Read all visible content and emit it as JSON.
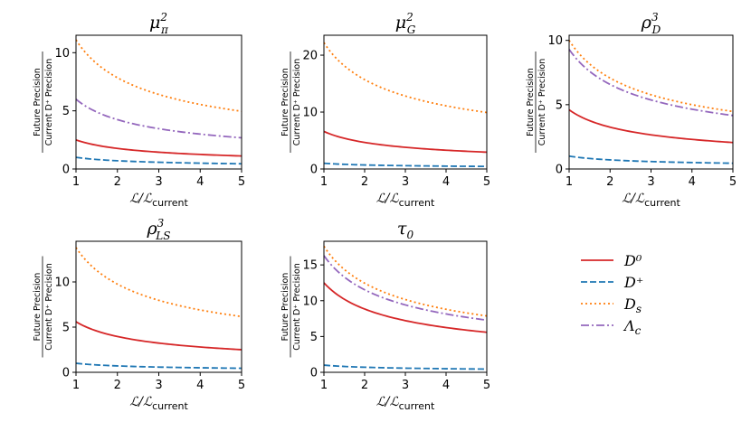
{
  "chart_data": [
    {
      "type": "line",
      "title": "μπ²",
      "xlabel": "ℒ/ℒcurrent",
      "ylabel_numerator": "Future Precision",
      "ylabel_denominator": "Current D⁺ Precision",
      "xlim": [
        1,
        5
      ],
      "ylim": [
        0,
        11.5
      ],
      "xticks": [
        "1",
        "2",
        "3",
        "4",
        "5"
      ],
      "yticks": [
        0,
        5,
        10
      ],
      "series": [
        {
          "name": "D0",
          "values_at_x1": 2.5
        },
        {
          "name": "D+",
          "values_at_x1": 1.0
        },
        {
          "name": "Ds",
          "values_at_x1": 11.1
        },
        {
          "name": "Λc",
          "values_at_x1": 6.0
        }
      ]
    },
    {
      "type": "line",
      "title": "μG²",
      "xlabel": "ℒ/ℒcurrent",
      "ylabel_numerator": "Future Precision",
      "ylabel_denominator": "Current D⁺ Precision",
      "xlim": [
        1,
        5
      ],
      "ylim": [
        0,
        23.5
      ],
      "xticks": [
        "1",
        "2",
        "3",
        "4",
        "5"
      ],
      "yticks": [
        0,
        10,
        20
      ],
      "series": [
        {
          "name": "D0",
          "values_at_x1": 6.6
        },
        {
          "name": "D+",
          "values_at_x1": 1.0
        },
        {
          "name": "Ds",
          "values_at_x1": 22.2
        }
      ]
    },
    {
      "type": "line",
      "title": "ρD³",
      "xlabel": "ℒ/ℒcurrent",
      "ylabel_numerator": "Future Precision",
      "ylabel_denominator": "Current D⁺ Precision",
      "xlim": [
        1,
        5
      ],
      "ylim": [
        0,
        10.4
      ],
      "xticks": [
        "1",
        "2",
        "3",
        "4",
        "5"
      ],
      "yticks": [
        0,
        5,
        10
      ],
      "series": [
        {
          "name": "D0",
          "values_at_x1": 4.6
        },
        {
          "name": "D+",
          "values_at_x1": 1.0
        },
        {
          "name": "Ds",
          "values_at_x1": 10.0
        },
        {
          "name": "Λc",
          "values_at_x1": 9.3
        }
      ]
    },
    {
      "type": "line",
      "title": "ρLS³",
      "xlabel": "ℒ/ℒcurrent",
      "ylabel_numerator": "Future Precision",
      "ylabel_denominator": "Current D⁺ Precision",
      "xlim": [
        1,
        5
      ],
      "ylim": [
        0,
        14.5
      ],
      "xticks": [
        "1",
        "2",
        "3",
        "4",
        "5"
      ],
      "yticks": [
        0,
        5,
        10
      ],
      "series": [
        {
          "name": "D0",
          "values_at_x1": 5.6
        },
        {
          "name": "D+",
          "values_at_x1": 1.0
        },
        {
          "name": "Ds",
          "values_at_x1": 13.8
        }
      ]
    },
    {
      "type": "line",
      "title": "τ0",
      "xlabel": "ℒ/ℒcurrent",
      "ylabel_numerator": "Future Precision",
      "ylabel_denominator": "Current D⁺ Precision",
      "xlim": [
        1,
        5
      ],
      "ylim": [
        0,
        18.3
      ],
      "xticks": [
        "1",
        "2",
        "3",
        "4",
        "5"
      ],
      "yticks": [
        0,
        5,
        10,
        15
      ],
      "series": [
        {
          "name": "D0",
          "values_at_x1": 12.5
        },
        {
          "name": "D+",
          "values_at_x1": 1.0
        },
        {
          "name": "Ds",
          "values_at_x1": 17.6
        },
        {
          "name": "Λc",
          "values_at_x1": 16.3
        }
      ]
    }
  ],
  "legend": {
    "position": "right",
    "entries": [
      {
        "key": "D0",
        "label": "D⁰",
        "color": "#d62728",
        "dash": "solid"
      },
      {
        "key": "D+",
        "label": "D⁺",
        "color": "#1f77b4",
        "dash": "dashed"
      },
      {
        "key": "Ds",
        "label": "Ds",
        "color": "#ff7f0e",
        "dash": "dotted"
      },
      {
        "key": "Λc",
        "label": "Λc",
        "color": "#9467bd",
        "dash": "dashdot"
      }
    ]
  },
  "scaling_law": "value(x) = value_at_x1 / sqrt(x)"
}
